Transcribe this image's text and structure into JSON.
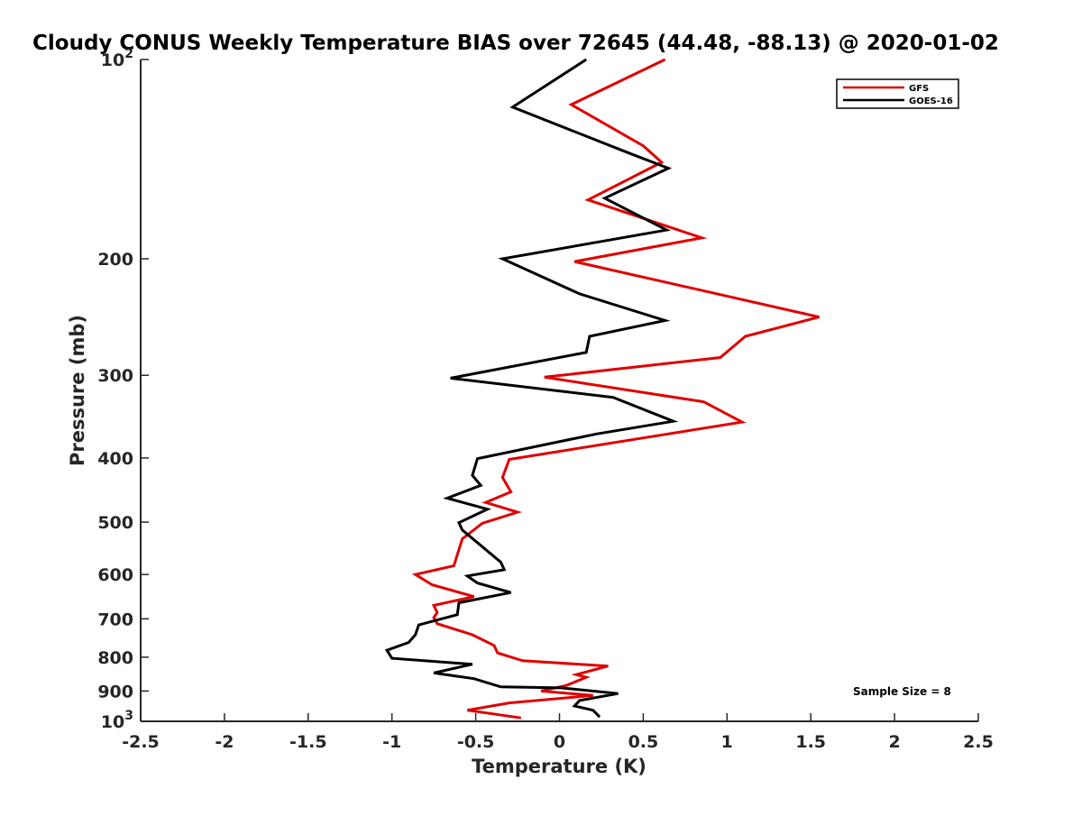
{
  "chart_data": {
    "type": "line",
    "title": "Cloudy CONUS Weekly Temperature BIAS over 72645 (44.48, -88.13) @ 2020-01-02",
    "xlabel": "Temperature (K)",
    "ylabel": "Pressure (mb)",
    "xlim": [
      -2.5,
      2.5
    ],
    "ylim": [
      100,
      1000
    ],
    "y_scale": "log",
    "y_reversed": true,
    "grid": false,
    "x_ticks": [
      {
        "value": -2.5,
        "label": "-2.5"
      },
      {
        "value": -2,
        "label": "-2"
      },
      {
        "value": -1.5,
        "label": "-1.5"
      },
      {
        "value": -1,
        "label": "-1"
      },
      {
        "value": -0.5,
        "label": "-0.5"
      },
      {
        "value": 0,
        "label": "0"
      },
      {
        "value": 0.5,
        "label": "0.5"
      },
      {
        "value": 1,
        "label": "1"
      },
      {
        "value": 1.5,
        "label": "1.5"
      },
      {
        "value": 2,
        "label": "2"
      },
      {
        "value": 2.5,
        "label": "2.5"
      }
    ],
    "y_ticks": [
      {
        "value": 100,
        "label": "10",
        "sup": "2"
      },
      {
        "value": 200,
        "label": "200",
        "sup": ""
      },
      {
        "value": 300,
        "label": "300",
        "sup": ""
      },
      {
        "value": 400,
        "label": "400",
        "sup": ""
      },
      {
        "value": 500,
        "label": "500",
        "sup": ""
      },
      {
        "value": 600,
        "label": "600",
        "sup": ""
      },
      {
        "value": 700,
        "label": "700",
        "sup": ""
      },
      {
        "value": 800,
        "label": "800",
        "sup": ""
      },
      {
        "value": 900,
        "label": "900",
        "sup": ""
      },
      {
        "value": 1000,
        "label": "10",
        "sup": "3"
      }
    ],
    "legend_position": "top-right",
    "annotation": "Sample Size = 8",
    "series": [
      {
        "name": "GFS",
        "color": "#e00000",
        "points": [
          {
            "x": 0.63,
            "p": 100
          },
          {
            "x": 0.07,
            "p": 117
          },
          {
            "x": 0.5,
            "p": 135
          },
          {
            "x": 0.61,
            "p": 143
          },
          {
            "x": 0.17,
            "p": 163
          },
          {
            "x": 0.85,
            "p": 186
          },
          {
            "x": 0.09,
            "p": 202
          },
          {
            "x": 1.55,
            "p": 245
          },
          {
            "x": 1.11,
            "p": 262
          },
          {
            "x": 0.96,
            "p": 282
          },
          {
            "x": -0.09,
            "p": 302
          },
          {
            "x": 0.86,
            "p": 329
          },
          {
            "x": 1.09,
            "p": 353
          },
          {
            "x": -0.3,
            "p": 402
          },
          {
            "x": -0.34,
            "p": 428
          },
          {
            "x": -0.29,
            "p": 450
          },
          {
            "x": -0.44,
            "p": 467
          },
          {
            "x": -0.25,
            "p": 483
          },
          {
            "x": -0.46,
            "p": 502
          },
          {
            "x": -0.58,
            "p": 530
          },
          {
            "x": -0.63,
            "p": 582
          },
          {
            "x": -0.86,
            "p": 600
          },
          {
            "x": -0.76,
            "p": 622
          },
          {
            "x": -0.51,
            "p": 648
          },
          {
            "x": -0.75,
            "p": 668
          },
          {
            "x": -0.73,
            "p": 685
          },
          {
            "x": -0.75,
            "p": 697
          },
          {
            "x": -0.73,
            "p": 712
          },
          {
            "x": -0.52,
            "p": 740
          },
          {
            "x": -0.39,
            "p": 768
          },
          {
            "x": -0.37,
            "p": 788
          },
          {
            "x": -0.22,
            "p": 810
          },
          {
            "x": 0.29,
            "p": 825
          },
          {
            "x": 0.1,
            "p": 850
          },
          {
            "x": 0.16,
            "p": 858
          },
          {
            "x": 0.04,
            "p": 883
          },
          {
            "x": -0.11,
            "p": 900
          },
          {
            "x": 0.2,
            "p": 914
          },
          {
            "x": -0.3,
            "p": 938
          },
          {
            "x": -0.55,
            "p": 962
          },
          {
            "x": -0.23,
            "p": 988
          }
        ]
      },
      {
        "name": "GOES-16",
        "color": "#000000",
        "points": [
          {
            "x": 0.16,
            "p": 100
          },
          {
            "x": -0.28,
            "p": 118
          },
          {
            "x": 0.4,
            "p": 138
          },
          {
            "x": 0.65,
            "p": 146
          },
          {
            "x": 0.27,
            "p": 162
          },
          {
            "x": 0.64,
            "p": 181
          },
          {
            "x": -0.34,
            "p": 200
          },
          {
            "x": 0.12,
            "p": 226
          },
          {
            "x": 0.63,
            "p": 248
          },
          {
            "x": 0.18,
            "p": 262
          },
          {
            "x": 0.16,
            "p": 277
          },
          {
            "x": -0.65,
            "p": 303
          },
          {
            "x": 0.32,
            "p": 324
          },
          {
            "x": 0.68,
            "p": 352
          },
          {
            "x": 0.22,
            "p": 368
          },
          {
            "x": -0.49,
            "p": 401
          },
          {
            "x": -0.52,
            "p": 425
          },
          {
            "x": -0.47,
            "p": 440
          },
          {
            "x": -0.67,
            "p": 460
          },
          {
            "x": -0.43,
            "p": 478
          },
          {
            "x": -0.6,
            "p": 501
          },
          {
            "x": -0.58,
            "p": 514
          },
          {
            "x": -0.35,
            "p": 575
          },
          {
            "x": -0.33,
            "p": 590
          },
          {
            "x": -0.55,
            "p": 603
          },
          {
            "x": -0.49,
            "p": 618
          },
          {
            "x": -0.29,
            "p": 639
          },
          {
            "x": -0.6,
            "p": 662
          },
          {
            "x": -0.61,
            "p": 690
          },
          {
            "x": -0.84,
            "p": 715
          },
          {
            "x": -0.86,
            "p": 740
          },
          {
            "x": -0.9,
            "p": 760
          },
          {
            "x": -1.03,
            "p": 781
          },
          {
            "x": -1.0,
            "p": 803
          },
          {
            "x": -0.52,
            "p": 820
          },
          {
            "x": -0.75,
            "p": 845
          },
          {
            "x": -0.51,
            "p": 862
          },
          {
            "x": -0.35,
            "p": 887
          },
          {
            "x": 0.01,
            "p": 890
          },
          {
            "x": 0.35,
            "p": 908
          },
          {
            "x": 0.12,
            "p": 930
          },
          {
            "x": 0.09,
            "p": 948
          },
          {
            "x": 0.2,
            "p": 962
          },
          {
            "x": 0.24,
            "p": 985
          }
        ]
      }
    ]
  }
}
